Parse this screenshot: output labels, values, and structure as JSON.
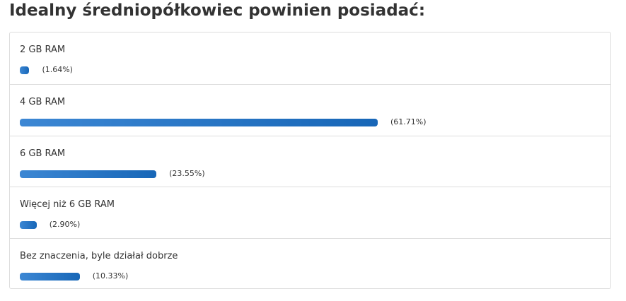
{
  "chart_data": {
    "type": "bar",
    "orientation": "horizontal",
    "title": "Idealny średniopółkowiec powinien posiadać:",
    "categories": [
      "2 GB RAM",
      "4 GB RAM",
      "6 GB RAM",
      "Więcej niż 6 GB RAM",
      "Bez znaczenia, byle działał dobrze"
    ],
    "values": [
      1.64,
      61.71,
      23.55,
      2.9,
      10.33
    ],
    "value_labels": [
      "(1.64%)",
      "(61.71%)",
      "(23.55%)",
      "(2.90%)",
      "(10.33%)"
    ],
    "xlim": [
      0,
      100
    ],
    "color": "#1a72cc"
  }
}
